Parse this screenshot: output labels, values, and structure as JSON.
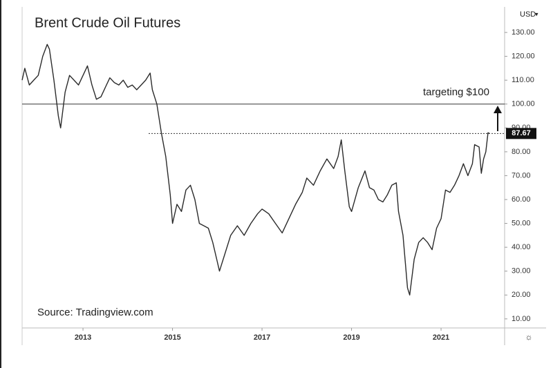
{
  "chart_data": {
    "type": "line",
    "title": "Brent Crude Oil Futures",
    "annotation": "targeting $100",
    "source": "Source: Tradingview.com",
    "currency": "USD",
    "reference_line": 100,
    "last_value": 87.67,
    "color": "#2a2a2a",
    "x": [
      2011.64,
      2011.7,
      2011.8,
      2011.9,
      2012.0,
      2012.1,
      2012.2,
      2012.25,
      2012.35,
      2012.45,
      2012.5,
      2012.6,
      2012.7,
      2012.8,
      2012.9,
      2013.0,
      2013.1,
      2013.2,
      2013.3,
      2013.4,
      2013.5,
      2013.6,
      2013.7,
      2013.8,
      2013.9,
      2014.0,
      2014.1,
      2014.2,
      2014.3,
      2014.4,
      2014.5,
      2014.55,
      2014.65,
      2014.75,
      2014.85,
      2014.95,
      2015.0,
      2015.1,
      2015.2,
      2015.3,
      2015.4,
      2015.5,
      2015.6,
      2015.7,
      2015.8,
      2015.9,
      2016.0,
      2016.05,
      2016.15,
      2016.3,
      2016.45,
      2016.6,
      2016.75,
      2016.9,
      2017.0,
      2017.15,
      2017.3,
      2017.45,
      2017.6,
      2017.75,
      2017.9,
      2018.0,
      2018.15,
      2018.3,
      2018.45,
      2018.6,
      2018.7,
      2018.77,
      2018.85,
      2018.95,
      2019.0,
      2019.15,
      2019.3,
      2019.4,
      2019.5,
      2019.6,
      2019.7,
      2019.8,
      2019.9,
      2020.0,
      2020.05,
      2020.15,
      2020.25,
      2020.3,
      2020.4,
      2020.5,
      2020.6,
      2020.7,
      2020.8,
      2020.9,
      2021.0,
      2021.1,
      2021.2,
      2021.3,
      2021.4,
      2021.5,
      2021.6,
      2021.7,
      2021.75,
      2021.85,
      2021.9,
      2021.95,
      2022.0,
      2022.05,
      2022.08
    ],
    "values": [
      110,
      115,
      108,
      110,
      112,
      120,
      125,
      123,
      110,
      95,
      90,
      105,
      112,
      110,
      108,
      112,
      116,
      108,
      102,
      103,
      107,
      111,
      109,
      108,
      110,
      107,
      108,
      106,
      108,
      110,
      113,
      106,
      100,
      88,
      78,
      62,
      50,
      58,
      55,
      64,
      66,
      60,
      50,
      49,
      48,
      42,
      34,
      30,
      36,
      45,
      49,
      45,
      50,
      54,
      56,
      54,
      50,
      46,
      52,
      58,
      63,
      69,
      66,
      72,
      77,
      73,
      78,
      85,
      72,
      57,
      55,
      65,
      72,
      65,
      64,
      60,
      59,
      62,
      66,
      67,
      55,
      45,
      23,
      20,
      35,
      42,
      44,
      42,
      39,
      48,
      52,
      64,
      63,
      66,
      70,
      75,
      70,
      75,
      83,
      82,
      71,
      77,
      80,
      88,
      87.67
    ],
    "xlim": [
      2011.64,
      2022.42
    ],
    "xticks": [
      2013,
      2015,
      2017,
      2019,
      2021
    ],
    "ylim": [
      6.2,
      140.7
    ],
    "yticks": [
      {
        "value": 10,
        "label": "10.00"
      },
      {
        "value": 20,
        "label": "20.00"
      },
      {
        "value": 30,
        "label": "30.00"
      },
      {
        "value": 40,
        "label": "40.00"
      },
      {
        "value": 50,
        "label": "50.00"
      },
      {
        "value": 60,
        "label": "60.00"
      },
      {
        "value": 70,
        "label": "70.00"
      },
      {
        "value": 80,
        "label": "80.00"
      },
      {
        "value": 90,
        "label": "90.00"
      },
      {
        "value": 100,
        "label": "100.00"
      },
      {
        "value": 110,
        "label": "110.00"
      },
      {
        "value": 120,
        "label": "120.00"
      },
      {
        "value": 130,
        "label": "130.00"
      }
    ]
  }
}
